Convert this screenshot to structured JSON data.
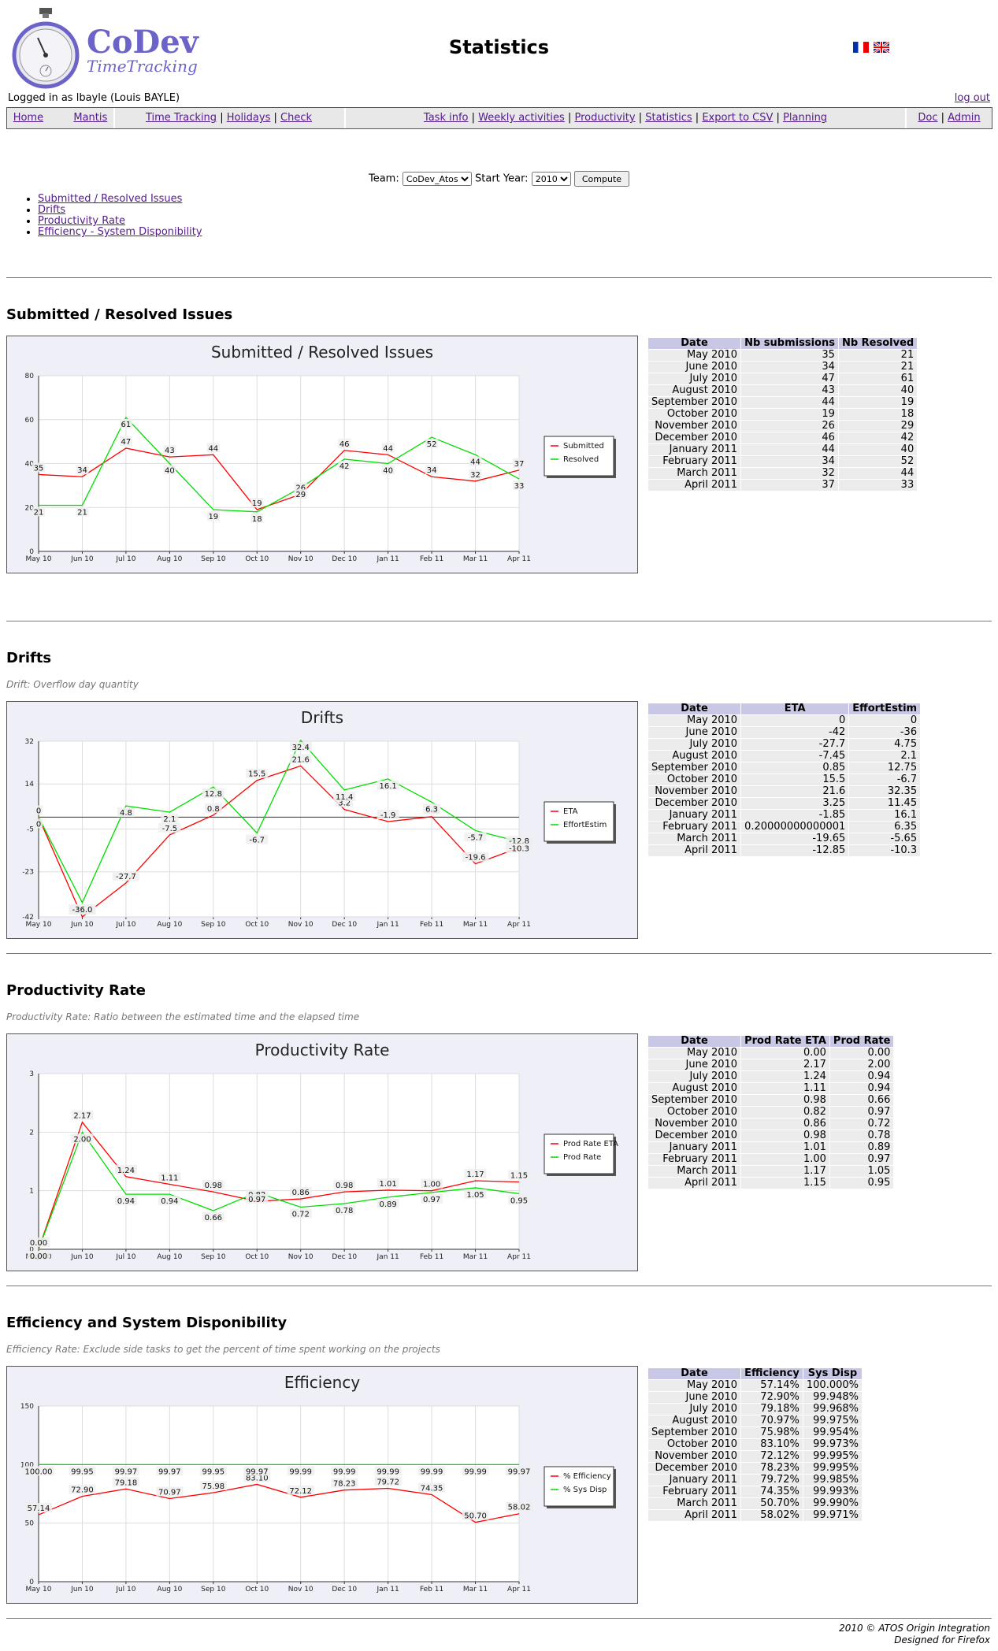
{
  "app": {
    "logo_title": "CoDev",
    "logo_subtitle": "TimeTracking",
    "page_title": "Statistics",
    "logged_in": "Logged in as lbayle (Louis BAYLE)",
    "logout": "log out"
  },
  "nav": {
    "group1": [
      "Home",
      "Mantis"
    ],
    "group2": [
      "Time Tracking",
      "Holidays",
      "Check"
    ],
    "group3": [
      "Task info",
      "Weekly activities",
      "Productivity",
      "Statistics",
      "Export to CSV",
      "Planning"
    ],
    "group4": [
      "Doc",
      "Admin"
    ]
  },
  "filters": {
    "team_label": "Team:",
    "team_value": "CoDev_Atos",
    "year_label": "Start Year:",
    "year_value": "2010",
    "compute": "Compute"
  },
  "toc": [
    "Submitted / Resolved Issues",
    "Drifts",
    "Productivity Rate",
    "Efficiency - System Disponibility"
  ],
  "footer": {
    "line1": "2010 © ATOS Origin Integration",
    "line2": "Designed for Firefox"
  },
  "chart_data": [
    {
      "type": "line",
      "title": "Submitted / Resolved Issues",
      "section_title": "Submitted / Resolved Issues",
      "categories": [
        "May 10",
        "Jun 10",
        "Jul 10",
        "Aug 10",
        "Sep 10",
        "Oct 10",
        "Nov 10",
        "Dec 10",
        "Jan 11",
        "Feb 11",
        "Mar 11",
        "Apr 11"
      ],
      "yticks": [
        "0",
        "20",
        "40",
        "60",
        "80"
      ],
      "ylim": [
        0,
        80
      ],
      "series": [
        {
          "name": "Submitted",
          "color": "#ff0000",
          "values": [
            35,
            34,
            47,
            43,
            44,
            19,
            26,
            46,
            44,
            34,
            32,
            37
          ],
          "labels": [
            "35",
            "34",
            "47",
            "43",
            "44",
            "19",
            "26",
            "46",
            "44",
            "34",
            "32",
            "37"
          ]
        },
        {
          "name": "Resolved",
          "color": "#00dd00",
          "values": [
            21,
            21,
            61,
            40,
            19,
            18,
            29,
            42,
            40,
            52,
            44,
            33
          ],
          "labels": [
            "21",
            "21",
            "61",
            "40",
            "19",
            "18",
            "29",
            "42",
            "40",
            "52",
            "44",
            "33"
          ]
        }
      ],
      "table": {
        "headers": [
          "Date",
          "Nb submissions",
          "Nb Resolved"
        ],
        "rows": [
          [
            "May 2010",
            "35",
            "21"
          ],
          [
            "June 2010",
            "34",
            "21"
          ],
          [
            "July 2010",
            "47",
            "61"
          ],
          [
            "August 2010",
            "43",
            "40"
          ],
          [
            "September 2010",
            "44",
            "19"
          ],
          [
            "October 2010",
            "19",
            "18"
          ],
          [
            "November 2010",
            "26",
            "29"
          ],
          [
            "December 2010",
            "46",
            "42"
          ],
          [
            "January 2011",
            "44",
            "40"
          ],
          [
            "February 2011",
            "34",
            "52"
          ],
          [
            "March 2011",
            "32",
            "44"
          ],
          [
            "April 2011",
            "37",
            "33"
          ]
        ]
      }
    },
    {
      "type": "line",
      "title": "Drifts",
      "section_title": "Drifts",
      "description": "Drift: Overflow day quantity",
      "categories": [
        "May 10",
        "Jun 10",
        "Jul 10",
        "Aug 10",
        "Sep 10",
        "Oct 10",
        "Nov 10",
        "Dec 10",
        "Jan 11",
        "Feb 11",
        "Mar 11",
        "Apr 11"
      ],
      "yticks": [
        "-42",
        "-23",
        "-5",
        "14",
        "32"
      ],
      "ytick_values": [
        -42,
        -23,
        -5,
        14,
        32
      ],
      "ylim": [
        -42,
        32
      ],
      "series": [
        {
          "name": "ETA",
          "color": "#ff0000",
          "values": [
            0,
            -42,
            -27.7,
            -7.45,
            0.85,
            15.5,
            21.6,
            3.25,
            -1.85,
            0.2,
            -19.65,
            -12.85
          ],
          "labels": [
            "0",
            "-42.0",
            "-27.7",
            "-7.5",
            "0.8",
            "15.5",
            "21.6",
            "3.2",
            "-1.9",
            "0.2",
            "-19.6",
            "-12.8"
          ]
        },
        {
          "name": "EffortEstim",
          "color": "#00dd00",
          "values": [
            0,
            -36,
            4.75,
            2.1,
            12.75,
            -6.7,
            32.35,
            11.45,
            16.1,
            6.35,
            -5.65,
            -10.3
          ],
          "labels": [
            "0",
            "-36.0",
            "4.8",
            "2.1",
            "12.8",
            "-6.7",
            "32.4",
            "11.4",
            "16.1",
            "6.3",
            "-5.7",
            "-10.3"
          ]
        }
      ],
      "table": {
        "headers": [
          "Date",
          "ETA",
          "EffortEstim"
        ],
        "rows": [
          [
            "May 2010",
            "0",
            "0"
          ],
          [
            "June 2010",
            "-42",
            "-36"
          ],
          [
            "July 2010",
            "-27.7",
            "4.75"
          ],
          [
            "August 2010",
            "-7.45",
            "2.1"
          ],
          [
            "September 2010",
            "0.85",
            "12.75"
          ],
          [
            "October 2010",
            "15.5",
            "-6.7"
          ],
          [
            "November 2010",
            "21.6",
            "32.35"
          ],
          [
            "December 2010",
            "3.25",
            "11.45"
          ],
          [
            "January 2011",
            "-1.85",
            "16.1"
          ],
          [
            "February 2011",
            "0.20000000000001",
            "6.35"
          ],
          [
            "March 2011",
            "-19.65",
            "-5.65"
          ],
          [
            "April 2011",
            "-12.85",
            "-10.3"
          ]
        ]
      }
    },
    {
      "type": "line",
      "title": "Productivity Rate",
      "section_title": "Productivity Rate",
      "description": "Productivity Rate: Ratio between the estimated time and the elapsed time",
      "categories": [
        "May 10",
        "Jun 10",
        "Jul 10",
        "Aug 10",
        "Sep 10",
        "Oct 10",
        "Nov 10",
        "Dec 10",
        "Jan 11",
        "Feb 11",
        "Mar 11",
        "Apr 11"
      ],
      "yticks": [
        "0",
        "1",
        "2",
        "3"
      ],
      "ylim": [
        0,
        3
      ],
      "series": [
        {
          "name": "Prod Rate ETA",
          "color": "#ff0000",
          "values": [
            0,
            2.17,
            1.24,
            1.11,
            0.98,
            0.82,
            0.86,
            0.98,
            1.01,
            1.0,
            1.17,
            1.15
          ],
          "labels": [
            "0.00",
            "2.17",
            "1.24",
            "1.11",
            "0.98",
            "0.82",
            "0.86",
            "0.98",
            "1.01",
            "1.00",
            "1.17",
            "1.15"
          ]
        },
        {
          "name": "Prod Rate",
          "color": "#00dd00",
          "values": [
            0,
            2.0,
            0.94,
            0.94,
            0.66,
            0.97,
            0.72,
            0.78,
            0.89,
            0.97,
            1.05,
            0.95
          ],
          "labels": [
            "0.00",
            "2.00",
            "0.94",
            "0.94",
            "0.66",
            "0.97",
            "0.72",
            "0.78",
            "0.89",
            "0.97",
            "1.05",
            "0.95"
          ]
        }
      ],
      "table": {
        "headers": [
          "Date",
          "Prod Rate ETA",
          "Prod Rate"
        ],
        "rows": [
          [
            "May 2010",
            "0.00",
            "0.00"
          ],
          [
            "June 2010",
            "2.17",
            "2.00"
          ],
          [
            "July 2010",
            "1.24",
            "0.94"
          ],
          [
            "August 2010",
            "1.11",
            "0.94"
          ],
          [
            "September 2010",
            "0.98",
            "0.66"
          ],
          [
            "October 2010",
            "0.82",
            "0.97"
          ],
          [
            "November 2010",
            "0.86",
            "0.72"
          ],
          [
            "December 2010",
            "0.98",
            "0.78"
          ],
          [
            "January 2011",
            "1.01",
            "0.89"
          ],
          [
            "February 2011",
            "1.00",
            "0.97"
          ],
          [
            "March 2011",
            "1.17",
            "1.05"
          ],
          [
            "April 2011",
            "1.15",
            "0.95"
          ]
        ]
      }
    },
    {
      "type": "line",
      "title": "Efficiency",
      "section_title": "Efficiency and System Disponibility",
      "description": "Efficiency Rate: Exclude side tasks to get the percent of time spent working on the projects",
      "categories": [
        "May 10",
        "Jun 10",
        "Jul 10",
        "Aug 10",
        "Sep 10",
        "Oct 10",
        "Nov 10",
        "Dec 10",
        "Jan 11",
        "Feb 11",
        "Mar 11",
        "Apr 11"
      ],
      "yticks": [
        "0",
        "50",
        "100",
        "150"
      ],
      "ylim": [
        0,
        150
      ],
      "series": [
        {
          "name": "% Efficiency",
          "color": "#ff0000",
          "values": [
            57.14,
            72.9,
            79.18,
            70.97,
            75.98,
            83.1,
            72.12,
            78.23,
            79.72,
            74.35,
            50.7,
            58.02
          ],
          "labels": [
            "57.14",
            "72.90",
            "79.18",
            "70.97",
            "75.98",
            "83.10",
            "72.12",
            "78.23",
            "79.72",
            "74.35",
            "50.70",
            "58.02"
          ]
        },
        {
          "name": "% Sys Disp",
          "color": "#00dd00",
          "values": [
            100.0,
            99.95,
            99.97,
            99.97,
            99.95,
            99.97,
            99.99,
            99.99,
            99.99,
            99.99,
            99.99,
            99.97
          ],
          "labels": [
            "100.00",
            "99.95",
            "99.97",
            "99.97",
            "99.95",
            "99.97",
            "99.99",
            "99.99",
            "99.99",
            "99.99",
            "99.99",
            "99.97"
          ]
        }
      ],
      "table": {
        "headers": [
          "Date",
          "Efficiency",
          "Sys Disp"
        ],
        "rows": [
          [
            "May 2010",
            "57.14%",
            "100.000%"
          ],
          [
            "June 2010",
            "72.90%",
            "99.948%"
          ],
          [
            "July 2010",
            "79.18%",
            "99.968%"
          ],
          [
            "August 2010",
            "70.97%",
            "99.975%"
          ],
          [
            "September 2010",
            "75.98%",
            "99.954%"
          ],
          [
            "October 2010",
            "83.10%",
            "99.973%"
          ],
          [
            "November 2010",
            "72.12%",
            "99.995%"
          ],
          [
            "December 2010",
            "78.23%",
            "99.995%"
          ],
          [
            "January 2011",
            "79.72%",
            "99.985%"
          ],
          [
            "February 2011",
            "74.35%",
            "99.993%"
          ],
          [
            "March 2011",
            "50.70%",
            "99.990%"
          ],
          [
            "April 2011",
            "58.02%",
            "99.971%"
          ]
        ]
      }
    }
  ]
}
